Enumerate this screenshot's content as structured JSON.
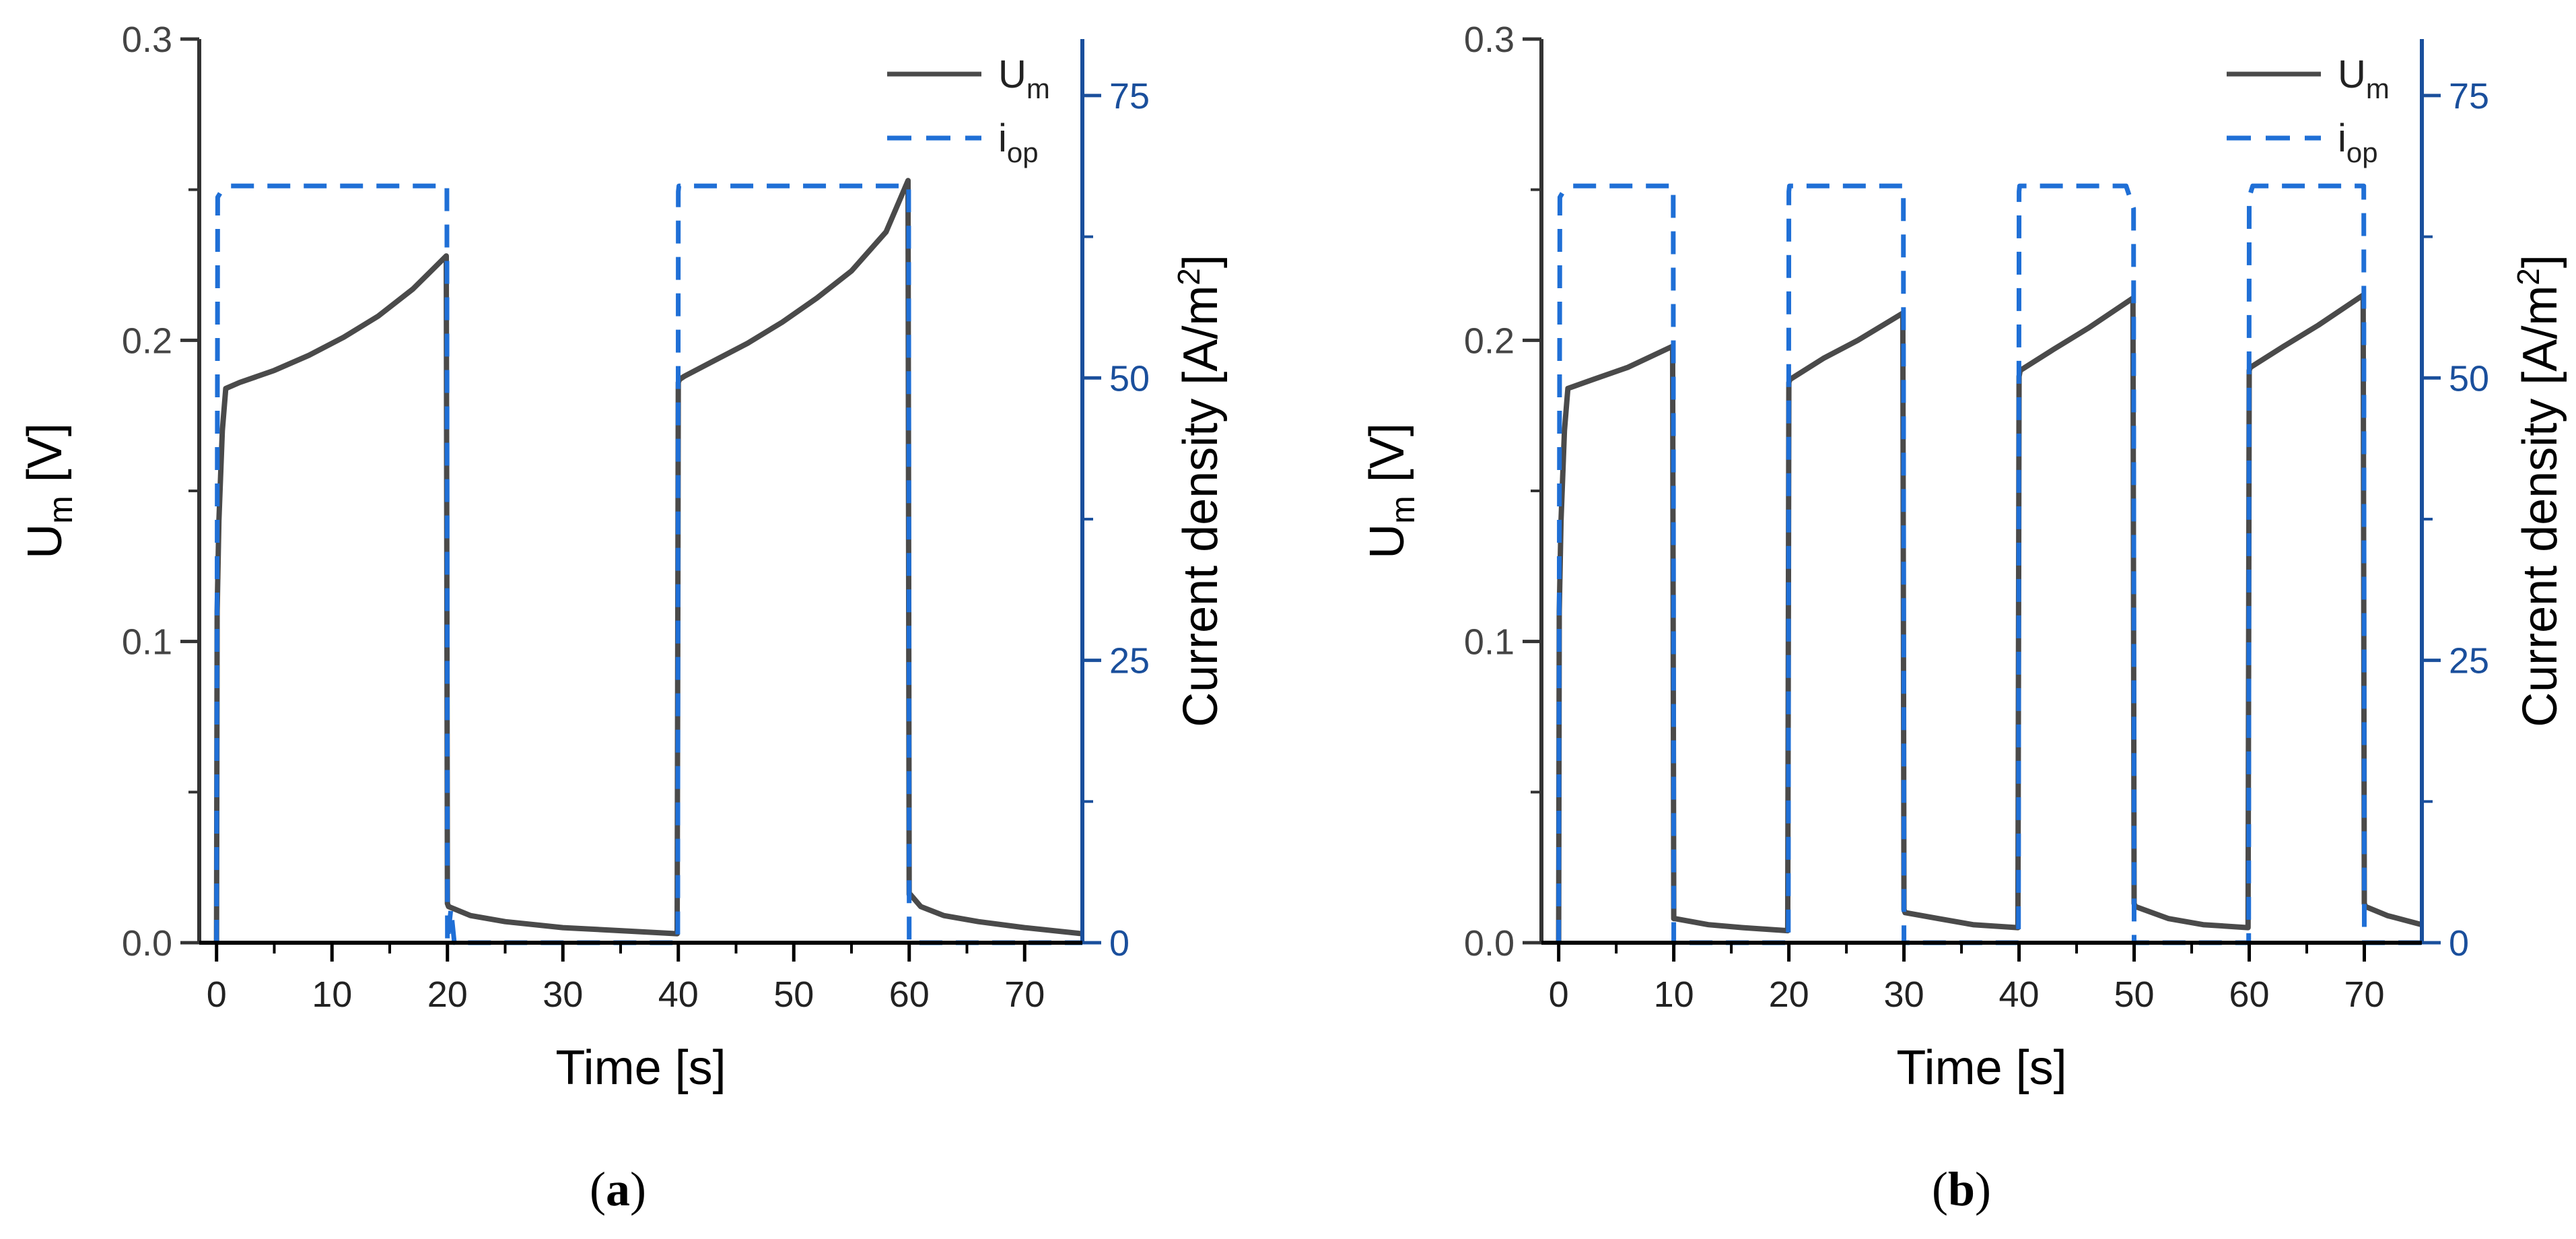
{
  "colors": {
    "um_line": "#4a4a4a",
    "iop_line": "#1f6fd6",
    "left_axis": "#333333",
    "right_axis": "#1a4f9c"
  },
  "chart_data": [
    {
      "type": "line",
      "panel_label": "a",
      "xlabel": "Time [s]",
      "ylabel_main": "U",
      "ylabel_sub": "m",
      "ylabel_unit": " [V]",
      "y2label_main": "Current density [A/m",
      "y2label_sup": "2",
      "y2label_end": "]",
      "xlim": [
        -1.5,
        75
      ],
      "ylim": [
        0,
        0.3
      ],
      "y2lim": [
        0,
        80
      ],
      "xticks": [
        0,
        10,
        20,
        30,
        40,
        50,
        60,
        70
      ],
      "yticks": [
        0.0,
        0.1,
        0.2,
        0.3
      ],
      "ytick_labels": [
        "0.0",
        "0.1",
        "0.2",
        "0.3"
      ],
      "y2ticks": [
        0,
        25,
        50,
        75
      ],
      "legend_position": "top-right",
      "legend": [
        {
          "main": "U",
          "sub": "m",
          "style": "solid"
        },
        {
          "main": "i",
          "sub": "op",
          "style": "dashed"
        }
      ],
      "series": [
        {
          "name": "U_m",
          "axis": "left",
          "x": [
            0,
            0.05,
            0.2,
            0.5,
            0.8,
            2,
            5,
            8,
            11,
            14,
            17,
            19.9,
            20.0,
            20.1,
            22,
            25,
            30,
            35,
            39.9,
            40.0,
            40.1,
            40.5,
            43,
            46,
            49,
            52,
            55,
            58,
            59.9,
            60.0,
            60.1,
            61,
            63,
            66,
            70,
            75
          ],
          "y": [
            0,
            0.11,
            0.14,
            0.17,
            0.184,
            0.186,
            0.19,
            0.195,
            0.201,
            0.208,
            0.217,
            0.228,
            0.013,
            0.012,
            0.009,
            0.007,
            0.005,
            0.004,
            0.003,
            0.186,
            0.187,
            0.188,
            0.193,
            0.199,
            0.206,
            0.214,
            0.223,
            0.236,
            0.253,
            0.016,
            0.016,
            0.012,
            0.009,
            0.007,
            0.005,
            0.003
          ]
        },
        {
          "name": "i_op",
          "axis": "right",
          "x": [
            0,
            0.1,
            0.4,
            1.2,
            19.95,
            20.0,
            20.3,
            20.6,
            39.95,
            40.0,
            40.05,
            59.95,
            60.0,
            75
          ],
          "y": [
            0,
            66,
            66.5,
            67,
            67,
            0,
            3,
            0,
            0,
            66.5,
            67,
            67,
            0,
            0
          ]
        }
      ]
    },
    {
      "type": "line",
      "panel_label": "b",
      "xlabel": "Time [s]",
      "ylabel_main": "U",
      "ylabel_sub": "m",
      "ylabel_unit": " [V]",
      "y2label_main": "Current density [A/m",
      "y2label_sup": "2",
      "y2label_end": "]",
      "xlim": [
        -1.5,
        75
      ],
      "ylim": [
        0,
        0.3
      ],
      "y2lim": [
        0,
        80
      ],
      "xticks": [
        0,
        10,
        20,
        30,
        40,
        50,
        60,
        70
      ],
      "yticks": [
        0.0,
        0.1,
        0.2,
        0.3
      ],
      "ytick_labels": [
        "0.0",
        "0.1",
        "0.2",
        "0.3"
      ],
      "y2ticks": [
        0,
        25,
        50,
        75
      ],
      "legend_position": "top-right",
      "legend": [
        {
          "main": "U",
          "sub": "m",
          "style": "solid"
        },
        {
          "main": "i",
          "sub": "op",
          "style": "dashed"
        }
      ],
      "series": [
        {
          "name": "U_m",
          "axis": "left",
          "x": [
            0,
            0.05,
            0.2,
            0.5,
            0.8,
            3,
            6,
            9.9,
            10.0,
            10.1,
            13,
            16,
            19.9,
            20.0,
            20.1,
            23,
            26,
            29.9,
            30.0,
            30.1,
            33,
            36,
            39.9,
            40.0,
            40.1,
            43,
            46,
            49.9,
            50.0,
            50.1,
            53,
            56,
            59.9,
            60.0,
            60.1,
            63,
            66,
            69.9,
            70.0,
            70.1,
            72,
            75
          ],
          "y": [
            0,
            0.11,
            0.14,
            0.17,
            0.184,
            0.187,
            0.191,
            0.198,
            0.008,
            0.008,
            0.006,
            0.005,
            0.004,
            0.186,
            0.187,
            0.194,
            0.2,
            0.209,
            0.011,
            0.01,
            0.008,
            0.006,
            0.005,
            0.188,
            0.19,
            0.197,
            0.204,
            0.214,
            0.013,
            0.012,
            0.008,
            0.006,
            0.005,
            0.19,
            0.191,
            0.198,
            0.205,
            0.215,
            0.013,
            0.012,
            0.009,
            0.006
          ]
        },
        {
          "name": "i_op",
          "axis": "right",
          "x": [
            0,
            0.1,
            0.4,
            1.2,
            9.95,
            10.0,
            19.95,
            20.0,
            20.05,
            29.95,
            30.0,
            39.95,
            40.0,
            40.05,
            49.3,
            49.95,
            50.0,
            59.95,
            60.0,
            60.3,
            60.7,
            69.95,
            70.0,
            75
          ],
          "y": [
            0,
            66,
            66.5,
            67,
            67,
            0,
            0,
            66.5,
            67,
            67,
            0,
            0,
            66.5,
            67,
            67,
            65,
            0,
            0,
            66,
            67,
            67,
            67,
            0,
            0
          ]
        }
      ]
    }
  ]
}
